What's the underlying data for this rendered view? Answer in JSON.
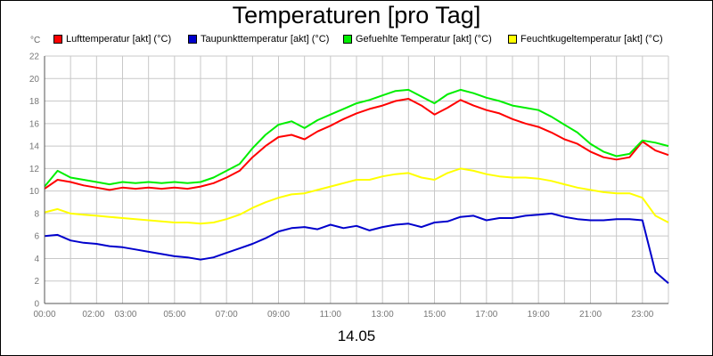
{
  "chart_data": {
    "type": "line",
    "title": "Temperaturen [pro Tag]",
    "y_unit": "°C",
    "x_caption": "14.05",
    "ylim": [
      0,
      22
    ],
    "y_ticks": [
      0,
      2,
      4,
      6,
      8,
      10,
      12,
      14,
      16,
      18,
      20,
      22
    ],
    "xlim_hours": [
      0,
      24
    ],
    "x_ticks": [
      {
        "h": 0,
        "label": "00:00"
      },
      {
        "h": 2,
        "label": "02:00"
      },
      {
        "h": 3,
        "label": "03:00"
      },
      {
        "h": 5,
        "label": "05:00"
      },
      {
        "h": 7,
        "label": "07:00"
      },
      {
        "h": 9,
        "label": "09:00"
      },
      {
        "h": 11,
        "label": "11:00"
      },
      {
        "h": 13,
        "label": "13:00"
      },
      {
        "h": 15,
        "label": "15:00"
      },
      {
        "h": 17,
        "label": "17:00"
      },
      {
        "h": 19,
        "label": "19:00"
      },
      {
        "h": 21,
        "label": "21:00"
      },
      {
        "h": 23,
        "label": "23:00"
      }
    ],
    "grid": true,
    "legend_position": "top",
    "x": [
      0,
      0.5,
      1,
      1.5,
      2,
      2.5,
      3,
      3.5,
      4,
      4.5,
      5,
      5.5,
      6,
      6.5,
      7,
      7.5,
      8,
      8.5,
      9,
      9.5,
      10,
      10.5,
      11,
      11.5,
      12,
      12.5,
      13,
      13.5,
      14,
      14.5,
      15,
      15.5,
      16,
      16.5,
      17,
      17.5,
      18,
      18.5,
      19,
      19.5,
      20,
      20.5,
      21,
      21.5,
      22,
      22.5,
      23,
      23.5,
      24
    ],
    "series": [
      {
        "name": "Lufttemperatur [akt] (°C)",
        "color": "#ff0000",
        "values": [
          10.2,
          11.0,
          10.8,
          10.5,
          10.3,
          10.1,
          10.3,
          10.2,
          10.3,
          10.2,
          10.3,
          10.2,
          10.4,
          10.7,
          11.2,
          11.8,
          13.0,
          14.0,
          14.8,
          15.0,
          14.6,
          15.3,
          15.8,
          16.4,
          16.9,
          17.3,
          17.6,
          18.0,
          18.2,
          17.6,
          16.8,
          17.4,
          18.1,
          17.6,
          17.2,
          16.9,
          16.4,
          16.0,
          15.7,
          15.2,
          14.6,
          14.2,
          13.5,
          13.0,
          12.8,
          13.0,
          14.4,
          13.6,
          13.2
        ]
      },
      {
        "name": "Taupunkttemperatur [akt] (°C)",
        "color": "#0000cc",
        "values": [
          6.0,
          6.1,
          5.6,
          5.4,
          5.3,
          5.1,
          5.0,
          4.8,
          4.6,
          4.4,
          4.2,
          4.1,
          3.9,
          4.1,
          4.5,
          4.9,
          5.3,
          5.8,
          6.4,
          6.7,
          6.8,
          6.6,
          7.0,
          6.7,
          6.9,
          6.5,
          6.8,
          7.0,
          7.1,
          6.8,
          7.2,
          7.3,
          7.7,
          7.8,
          7.4,
          7.6,
          7.6,
          7.8,
          7.9,
          8.0,
          7.7,
          7.5,
          7.4,
          7.4,
          7.5,
          7.5,
          7.4,
          2.8,
          1.8
        ]
      },
      {
        "name": "Gefuehlte Temperatur [akt] (°C)",
        "color": "#00ee00",
        "values": [
          10.4,
          11.8,
          11.2,
          11.0,
          10.8,
          10.6,
          10.8,
          10.7,
          10.8,
          10.7,
          10.8,
          10.7,
          10.8,
          11.2,
          11.8,
          12.4,
          13.8,
          15.0,
          15.9,
          16.2,
          15.6,
          16.3,
          16.8,
          17.3,
          17.8,
          18.1,
          18.5,
          18.9,
          19.0,
          18.4,
          17.8,
          18.6,
          19.0,
          18.7,
          18.3,
          18.0,
          17.6,
          17.4,
          17.2,
          16.6,
          15.9,
          15.2,
          14.2,
          13.5,
          13.1,
          13.3,
          14.5,
          14.3,
          14.0
        ]
      },
      {
        "name": "Feuchtkugeltemperatur [akt] (°C)",
        "color": "#ffff00",
        "values": [
          8.1,
          8.4,
          8.0,
          7.9,
          7.8,
          7.7,
          7.6,
          7.5,
          7.4,
          7.3,
          7.2,
          7.2,
          7.1,
          7.2,
          7.5,
          7.9,
          8.5,
          9.0,
          9.4,
          9.7,
          9.8,
          10.1,
          10.4,
          10.7,
          11.0,
          11.0,
          11.3,
          11.5,
          11.6,
          11.2,
          11.0,
          11.6,
          12.0,
          11.8,
          11.5,
          11.3,
          11.2,
          11.2,
          11.1,
          10.9,
          10.6,
          10.3,
          10.1,
          9.9,
          9.8,
          9.8,
          9.4,
          7.8,
          7.2
        ]
      }
    ]
  }
}
